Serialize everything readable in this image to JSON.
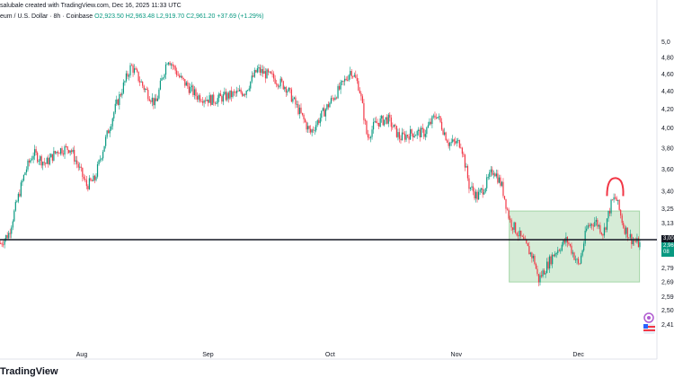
{
  "header": {
    "line1": "salubale created with TradingView.com, Dec 16, 2025 11:33 UTC",
    "symbol": "eum / U.S. Dollar · 8h · Coinbase",
    "open": "O2,923.50",
    "high": "H2,963.48",
    "low": "L2,919.70",
    "close": "C2,961.20",
    "change": "+37.69 (+1.29%)"
  },
  "price_tags": {
    "current": "3,00",
    "green1": "2,96",
    "green2": "08"
  },
  "logo": "TradingView",
  "colors": {
    "up": "#089981",
    "down": "#f23645",
    "box": "#c8e6c9",
    "hline": "#131722",
    "arc": "#f23645"
  },
  "chart_data": {
    "type": "candlestick",
    "x_tick_labels": [
      "Aug",
      "Sep",
      "Oct",
      "Nov",
      "Dec"
    ],
    "y_tick_labels": [
      "5,0",
      "4,80",
      "4,60",
      "4,40",
      "4,20",
      "4,00",
      "3,80",
      "3,60",
      "3,40",
      "3,25",
      "3,13",
      "3,00",
      "2,79",
      "2,69",
      "2,59",
      "2,50",
      "2,41"
    ],
    "y_tick_values": [
      5000,
      4800,
      4600,
      4400,
      4200,
      4000,
      3800,
      3600,
      3400,
      3250,
      3130,
      3000,
      2790,
      2690,
      2590,
      2500,
      2410
    ],
    "y_scale": "log",
    "ylim": [
      2360,
      5250
    ],
    "horizontal_line": 3000,
    "range_box": {
      "start": "Nov 14",
      "end": "Dec 16",
      "top": 3230,
      "bottom": 2690
    },
    "series": [
      {
        "date": "Jul 10",
        "close": 2900
      },
      {
        "date": "Jul 14",
        "close": 3050
      },
      {
        "date": "Jul 18",
        "close": 3580
      },
      {
        "date": "Jul 20",
        "close": 3750
      },
      {
        "date": "Jul 23",
        "close": 3650
      },
      {
        "date": "Jul 26",
        "close": 3780
      },
      {
        "date": "Jul 29",
        "close": 3800
      },
      {
        "date": "Aug 2",
        "close": 3450
      },
      {
        "date": "Aug 4",
        "close": 3500
      },
      {
        "date": "Aug 9",
        "close": 4200
      },
      {
        "date": "Aug 13",
        "close": 4700
      },
      {
        "date": "Aug 16",
        "close": 4450
      },
      {
        "date": "Aug 19",
        "close": 4250
      },
      {
        "date": "Aug 22",
        "close": 4800
      },
      {
        "date": "Aug 25",
        "close": 4550
      },
      {
        "date": "Aug 29",
        "close": 4350
      },
      {
        "date": "Sep 2",
        "close": 4300
      },
      {
        "date": "Sep 6",
        "close": 4350
      },
      {
        "date": "Sep 10",
        "close": 4400
      },
      {
        "date": "Sep 13",
        "close": 4650
      },
      {
        "date": "Sep 17",
        "close": 4550
      },
      {
        "date": "Sep 20",
        "close": 4450
      },
      {
        "date": "Sep 23",
        "close": 4200
      },
      {
        "date": "Sep 26",
        "close": 3950
      },
      {
        "date": "Sep 29",
        "close": 4150
      },
      {
        "date": "Oct 2",
        "close": 4350
      },
      {
        "date": "Oct 4",
        "close": 4480
      },
      {
        "date": "Oct 6",
        "close": 4650
      },
      {
        "date": "Oct 8",
        "close": 4450
      },
      {
        "date": "Oct 10",
        "close": 3900
      },
      {
        "date": "Oct 12",
        "close": 4050
      },
      {
        "date": "Oct 15",
        "close": 4100
      },
      {
        "date": "Oct 18",
        "close": 3900
      },
      {
        "date": "Oct 21",
        "close": 3950
      },
      {
        "date": "Oct 24",
        "close": 3950
      },
      {
        "date": "Oct 27",
        "close": 4150
      },
      {
        "date": "Oct 30",
        "close": 3850
      },
      {
        "date": "Nov 2",
        "close": 3850
      },
      {
        "date": "Nov 4",
        "close": 3450
      },
      {
        "date": "Nov 6",
        "close": 3350
      },
      {
        "date": "Nov 8",
        "close": 3450
      },
      {
        "date": "Nov 10",
        "close": 3600
      },
      {
        "date": "Nov 12",
        "close": 3450
      },
      {
        "date": "Nov 14",
        "close": 3150
      },
      {
        "date": "Nov 17",
        "close": 3000
      },
      {
        "date": "Nov 20",
        "close": 2850
      },
      {
        "date": "Nov 21",
        "close": 2700
      },
      {
        "date": "Nov 23",
        "close": 2800
      },
      {
        "date": "Nov 25",
        "close": 2900
      },
      {
        "date": "Nov 28",
        "close": 3000
      },
      {
        "date": "Dec 1",
        "close": 2800
      },
      {
        "date": "Dec 3",
        "close": 3100
      },
      {
        "date": "Dec 5",
        "close": 3150
      },
      {
        "date": "Dec 7",
        "close": 3050
      },
      {
        "date": "Dec 9",
        "close": 3300
      },
      {
        "date": "Dec 10",
        "close": 3350
      },
      {
        "date": "Dec 12",
        "close": 3100
      },
      {
        "date": "Dec 14",
        "close": 3000
      },
      {
        "date": "Dec 16",
        "close": 2961.2
      }
    ]
  }
}
